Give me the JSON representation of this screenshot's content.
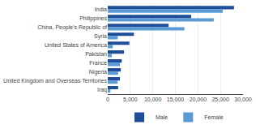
{
  "chart_data": {
    "type": "bar",
    "orientation": "horizontal",
    "categories": [
      "India",
      "Philippines",
      "China, People's Republic of",
      "Syria",
      "United States of America",
      "Pakistan",
      "France",
      "Nigeria",
      "United Kingdom and Overseas Territories",
      "Iraq"
    ],
    "series": [
      {
        "name": "Male",
        "color": "#1F4E99",
        "values": [
          28000,
          18500,
          13500,
          5800,
          4800,
          3600,
          3100,
          2900,
          2700,
          2300
        ]
      },
      {
        "name": "Female",
        "color": "#5B9BD5",
        "values": [
          25500,
          23500,
          17000,
          2200,
          1100,
          900,
          2700,
          2300,
          2200,
          600
        ]
      }
    ],
    "xlim": [
      0,
      30000
    ],
    "xticks": [
      0,
      {
        "value": 5000,
        "label": "5,000"
      },
      {
        "value": 10000,
        "label": "10,000"
      },
      {
        "value": 15000,
        "label": "15,000"
      },
      {
        "value": 20000,
        "label": "20,000"
      },
      {
        "value": 25000,
        "label": "25,000"
      },
      {
        "value": 30000,
        "label": "30,000"
      }
    ],
    "grid": true,
    "legend": "bottom"
  }
}
